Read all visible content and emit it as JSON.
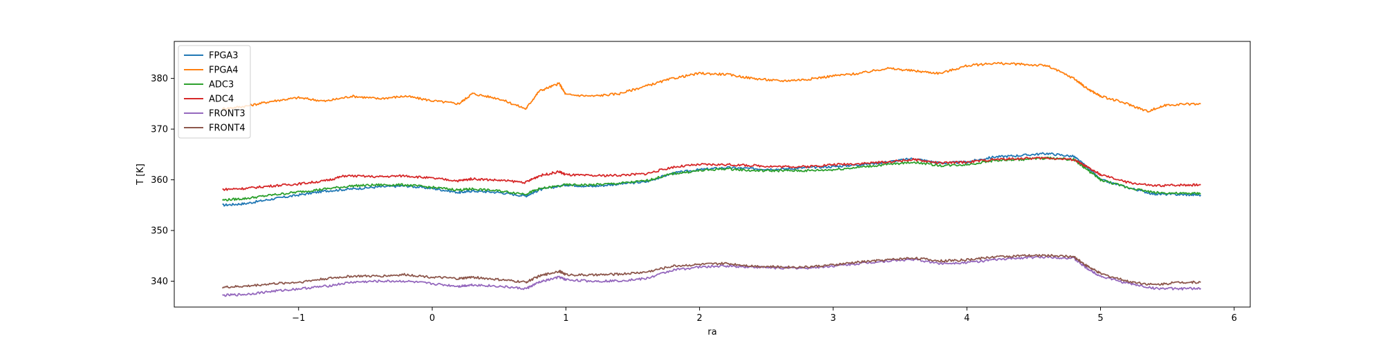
{
  "chart_data": {
    "type": "line",
    "title": "",
    "xlabel": "ra",
    "ylabel": "T [K]",
    "xlim": [
      -1.93,
      6.12
    ],
    "ylim": [
      334.9,
      387.3
    ],
    "xticks": [
      -1,
      0,
      1,
      2,
      3,
      4,
      5,
      6
    ],
    "yticks": [
      340,
      350,
      360,
      370,
      380
    ],
    "grid": false,
    "legend_position": "top-left",
    "series": [
      {
        "name": "FPGA3",
        "color": "#1f77b4",
        "x": [
          -1.57,
          -1.4,
          -1.2,
          -1.0,
          -0.8,
          -0.6,
          -0.4,
          -0.2,
          0.0,
          0.2,
          0.3,
          0.5,
          0.7,
          0.8,
          1.0,
          1.2,
          1.4,
          1.6,
          1.8,
          2.0,
          2.2,
          2.4,
          2.6,
          2.8,
          3.0,
          3.2,
          3.4,
          3.6,
          3.8,
          4.0,
          4.2,
          4.4,
          4.6,
          4.8,
          4.9,
          5.0,
          5.2,
          5.4,
          5.6,
          5.75
        ],
        "y": [
          355.0,
          355.3,
          356.2,
          357.0,
          357.8,
          358.2,
          358.6,
          358.8,
          358.3,
          357.5,
          357.8,
          357.5,
          356.8,
          358.0,
          359.0,
          358.7,
          359.2,
          359.6,
          361.3,
          362.0,
          362.4,
          362.2,
          362.1,
          362.4,
          362.6,
          363.0,
          363.5,
          364.2,
          363.3,
          363.5,
          364.5,
          364.8,
          365.2,
          364.6,
          362.5,
          360.0,
          358.5,
          357.2,
          357.1,
          357.0
        ]
      },
      {
        "name": "FPGA4",
        "color": "#ff7f0e",
        "x": [
          -1.57,
          -1.4,
          -1.2,
          -1.0,
          -0.8,
          -0.6,
          -0.4,
          -0.2,
          0.0,
          0.2,
          0.3,
          0.5,
          0.7,
          0.8,
          0.95,
          1.0,
          1.2,
          1.4,
          1.6,
          1.8,
          2.0,
          2.2,
          2.4,
          2.6,
          2.8,
          3.0,
          3.2,
          3.4,
          3.6,
          3.8,
          4.0,
          4.2,
          4.4,
          4.6,
          4.8,
          4.9,
          5.0,
          5.2,
          5.35,
          5.5,
          5.75
        ],
        "y": [
          374.0,
          374.5,
          375.5,
          376.2,
          375.5,
          376.5,
          376.0,
          376.5,
          375.6,
          375.0,
          377.0,
          376.0,
          374.0,
          377.5,
          379.0,
          376.8,
          376.5,
          377.0,
          378.5,
          380.0,
          381.0,
          380.8,
          380.0,
          379.5,
          379.8,
          380.5,
          381.0,
          382.0,
          381.5,
          381.0,
          382.5,
          383.0,
          382.8,
          382.5,
          380.0,
          378.0,
          376.5,
          375.0,
          373.5,
          374.8,
          375.0
        ]
      },
      {
        "name": "ADC3",
        "color": "#2ca02c",
        "x": [
          -1.57,
          -1.4,
          -1.2,
          -1.0,
          -0.8,
          -0.6,
          -0.4,
          -0.2,
          0.0,
          0.2,
          0.3,
          0.5,
          0.7,
          0.8,
          1.0,
          1.2,
          1.4,
          1.6,
          1.8,
          2.0,
          2.2,
          2.4,
          2.6,
          2.8,
          3.0,
          3.2,
          3.4,
          3.6,
          3.8,
          4.0,
          4.2,
          4.4,
          4.6,
          4.8,
          4.9,
          5.0,
          5.2,
          5.4,
          5.6,
          5.75
        ],
        "y": [
          356.0,
          356.3,
          357.0,
          357.6,
          358.2,
          358.8,
          359.0,
          359.0,
          358.5,
          358.0,
          358.2,
          357.8,
          357.2,
          358.2,
          359.0,
          359.0,
          359.3,
          359.8,
          361.2,
          361.8,
          362.2,
          361.8,
          361.8,
          361.8,
          362.0,
          362.5,
          363.0,
          363.5,
          362.8,
          363.0,
          363.8,
          364.0,
          364.3,
          364.0,
          362.0,
          360.0,
          358.5,
          357.5,
          357.3,
          357.3
        ]
      },
      {
        "name": "ADC4",
        "color": "#d62728",
        "x": [
          -1.57,
          -1.4,
          -1.2,
          -1.0,
          -0.8,
          -0.65,
          -0.4,
          -0.2,
          0.0,
          0.2,
          0.3,
          0.5,
          0.7,
          0.8,
          0.95,
          1.0,
          1.2,
          1.4,
          1.6,
          1.8,
          2.0,
          2.2,
          2.4,
          2.6,
          2.8,
          3.0,
          3.2,
          3.4,
          3.6,
          3.8,
          4.0,
          4.2,
          4.4,
          4.6,
          4.8,
          4.9,
          5.0,
          5.2,
          5.4,
          5.6,
          5.75
        ],
        "y": [
          358.1,
          358.3,
          358.8,
          359.2,
          359.8,
          360.8,
          360.6,
          360.8,
          360.3,
          359.8,
          360.2,
          359.9,
          359.5,
          360.8,
          361.6,
          361.0,
          360.8,
          360.9,
          361.2,
          362.5,
          363.0,
          363.0,
          362.8,
          362.6,
          362.6,
          363.0,
          363.2,
          363.5,
          364.0,
          363.3,
          363.5,
          364.0,
          364.2,
          364.3,
          364.0,
          362.5,
          361.0,
          359.5,
          358.8,
          359.0,
          359.0
        ]
      },
      {
        "name": "FRONT3",
        "color": "#9467bd",
        "x": [
          -1.57,
          -1.4,
          -1.2,
          -1.0,
          -0.8,
          -0.6,
          -0.4,
          -0.2,
          0.0,
          0.2,
          0.3,
          0.5,
          0.7,
          0.8,
          0.95,
          1.0,
          1.2,
          1.4,
          1.6,
          1.8,
          2.0,
          2.2,
          2.4,
          2.6,
          2.8,
          3.0,
          3.2,
          3.4,
          3.6,
          3.8,
          4.0,
          4.2,
          4.4,
          4.6,
          4.8,
          4.9,
          5.0,
          5.2,
          5.4,
          5.6,
          5.75
        ],
        "y": [
          337.2,
          337.4,
          338.0,
          338.5,
          339.0,
          339.8,
          340.0,
          340.0,
          339.5,
          339.0,
          339.3,
          339.0,
          338.5,
          339.8,
          340.8,
          340.3,
          340.0,
          340.1,
          340.5,
          342.2,
          342.8,
          343.0,
          342.8,
          342.6,
          342.6,
          343.0,
          343.5,
          344.0,
          344.3,
          343.5,
          343.7,
          344.2,
          344.6,
          344.8,
          344.5,
          342.5,
          341.0,
          339.6,
          338.6,
          338.5,
          338.6
        ]
      },
      {
        "name": "FRONT4",
        "color": "#8c564b",
        "x": [
          -1.57,
          -1.4,
          -1.2,
          -1.0,
          -0.8,
          -0.6,
          -0.4,
          -0.2,
          0.0,
          0.2,
          0.3,
          0.5,
          0.7,
          0.8,
          0.95,
          1.0,
          1.2,
          1.4,
          1.6,
          1.8,
          2.0,
          2.2,
          2.4,
          2.6,
          2.8,
          3.0,
          3.2,
          3.4,
          3.6,
          3.8,
          4.0,
          4.2,
          4.4,
          4.6,
          4.8,
          4.9,
          5.0,
          5.2,
          5.4,
          5.6,
          5.75
        ],
        "y": [
          338.8,
          339.0,
          339.5,
          339.8,
          340.5,
          341.0,
          341.0,
          341.3,
          340.8,
          340.5,
          340.8,
          340.3,
          339.8,
          341.0,
          342.0,
          341.3,
          341.2,
          341.4,
          341.8,
          343.0,
          343.3,
          343.5,
          343.0,
          342.8,
          342.8,
          343.2,
          343.8,
          344.2,
          344.6,
          344.0,
          344.2,
          344.8,
          345.0,
          345.1,
          344.8,
          343.0,
          341.5,
          340.0,
          339.3,
          339.8,
          339.8
        ]
      }
    ]
  }
}
